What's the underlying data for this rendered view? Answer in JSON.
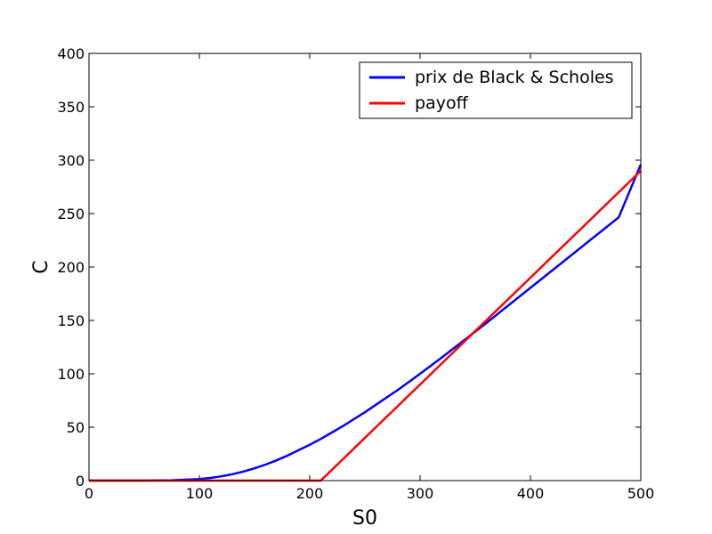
{
  "chart_data": {
    "type": "line",
    "title": "",
    "xlabel": "S0",
    "ylabel": "C",
    "xlim": [
      0,
      500
    ],
    "ylim": [
      0,
      400
    ],
    "x_ticks": [
      0,
      100,
      200,
      300,
      400,
      500
    ],
    "y_ticks": [
      0,
      50,
      100,
      150,
      200,
      250,
      300,
      350,
      400
    ],
    "grid": false,
    "legend_position": "top-right",
    "series": [
      {
        "name": "prix de Black & Scholes",
        "color": "#0000ff",
        "x": [
          0,
          25,
          50,
          75,
          100,
          110,
          120,
          130,
          140,
          150,
          160,
          170,
          180,
          190,
          200,
          210,
          220,
          230,
          240,
          250,
          260,
          270,
          280,
          290,
          300,
          320,
          340,
          360,
          380,
          400,
          420,
          440,
          460,
          480,
          500
        ],
        "y": [
          0,
          0,
          0.02,
          0.3,
          1.5,
          2.5,
          4,
          6,
          8.5,
          11.5,
          15,
          19,
          23.5,
          28.5,
          33.5,
          39,
          45,
          51,
          57.5,
          64,
          71,
          78,
          85,
          92.5,
          100,
          115.5,
          131.5,
          147.5,
          164,
          180.5,
          197,
          213.5,
          230,
          246.5,
          296
        ]
      },
      {
        "name": "payoff",
        "color": "#ff0000",
        "x": [
          0,
          210,
          500
        ],
        "y": [
          0,
          0,
          290
        ]
      }
    ]
  }
}
